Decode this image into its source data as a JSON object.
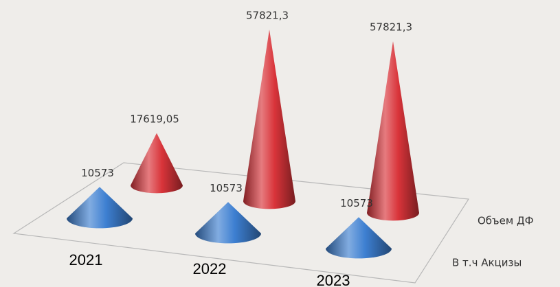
{
  "chart_data": {
    "type": "cone3d",
    "categories": [
      "2021",
      "2022",
      "2023"
    ],
    "series": [
      {
        "name": "Объем ДФ",
        "color": "#d9343a",
        "values": [
          17619.05,
          57821.3,
          57821.3
        ],
        "value_labels": [
          "17619,05",
          "57821,3",
          "57821,3"
        ]
      },
      {
        "name": "В т.ч Акцизы",
        "color": "#3d7fd1",
        "values": [
          10573,
          10573,
          10573
        ],
        "value_labels": [
          "10573",
          "10573",
          "10573"
        ]
      }
    ]
  }
}
